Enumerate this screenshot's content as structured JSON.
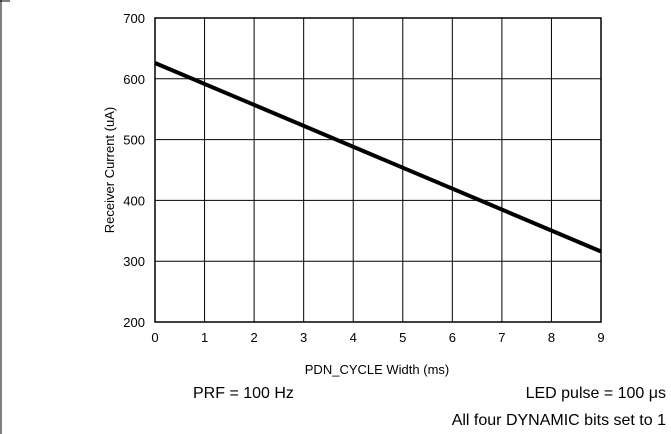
{
  "chart_data": {
    "type": "line",
    "title": "",
    "xlabel": "PDN_CYCLE Width (ms)",
    "ylabel": "Receiver Current (uA)",
    "xlim": [
      0,
      9
    ],
    "ylim": [
      200,
      700
    ],
    "x_ticks": [
      "0",
      "1",
      "2",
      "3",
      "4",
      "5",
      "6",
      "7",
      "8",
      "9"
    ],
    "y_ticks": [
      "200",
      "300",
      "400",
      "500",
      "600",
      "700"
    ],
    "grid": true,
    "series": [
      {
        "x": [
          0,
          9
        ],
        "y": [
          626,
          316
        ]
      }
    ]
  },
  "notes": {
    "prf": "PRF = 100 Hz",
    "led_pulse": "LED pulse = 100 μs",
    "dynamic": "All four DYNAMIC bits set to 1"
  }
}
